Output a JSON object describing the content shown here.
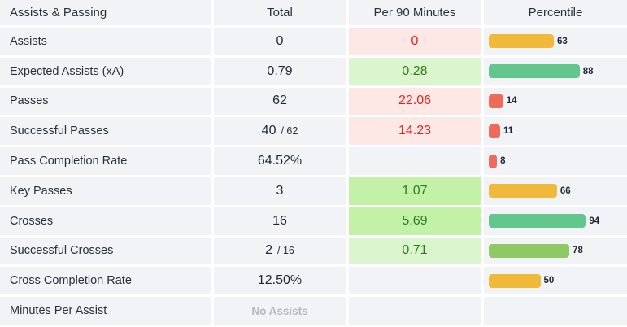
{
  "header": {
    "title": "Assists & Passing",
    "total": "Total",
    "per90": "Per 90 Minutes",
    "percentile": "Percentile"
  },
  "colors": {
    "yellow": "#f0b93a",
    "green": "#63c78d",
    "lightgreen": "#8fc964",
    "red": "#f06a5a"
  },
  "rows": [
    {
      "label": "Assists",
      "total": "0",
      "per90": "0",
      "per90_style": "red",
      "percentile": "63",
      "pct_value": 63,
      "bar_color": "yellow"
    },
    {
      "label": "Expected Assists (xA)",
      "total": "0.79",
      "per90": "0.28",
      "per90_style": "lgreen",
      "percentile": "88",
      "pct_value": 88,
      "bar_color": "green"
    },
    {
      "label": "Passes",
      "total": "62",
      "per90": "22.06",
      "per90_style": "red",
      "percentile": "14",
      "pct_value": 14,
      "bar_color": "red"
    },
    {
      "label": "Successful Passes",
      "total": "40",
      "denom": "/ 62",
      "per90": "14.23",
      "per90_style": "red",
      "percentile": "11",
      "pct_value": 11,
      "bar_color": "red"
    },
    {
      "label": "Pass Completion Rate",
      "total": "64.52%",
      "per90": "",
      "per90_style": "none",
      "percentile": "8",
      "pct_value": 8,
      "bar_color": "red"
    },
    {
      "label": "Key Passes",
      "total": "3",
      "per90": "1.07",
      "per90_style": "green",
      "percentile": "66",
      "pct_value": 66,
      "bar_color": "yellow"
    },
    {
      "label": "Crosses",
      "total": "16",
      "per90": "5.69",
      "per90_style": "green",
      "percentile": "94",
      "pct_value": 94,
      "bar_color": "green"
    },
    {
      "label": "Successful Crosses",
      "total": "2",
      "denom": "/ 16",
      "per90": "0.71",
      "per90_style": "lgreen",
      "percentile": "78",
      "pct_value": 78,
      "bar_color": "lightgreen"
    },
    {
      "label": "Cross Completion Rate",
      "total": "12.50%",
      "per90": "",
      "per90_style": "none",
      "percentile": "50",
      "pct_value": 50,
      "bar_color": "yellow"
    },
    {
      "label": "Minutes Per Assist",
      "total": "No Assists",
      "total_muted": true,
      "per90": "",
      "per90_style": "none",
      "percentile": "",
      "pct_value": null,
      "bar_color": ""
    }
  ]
}
